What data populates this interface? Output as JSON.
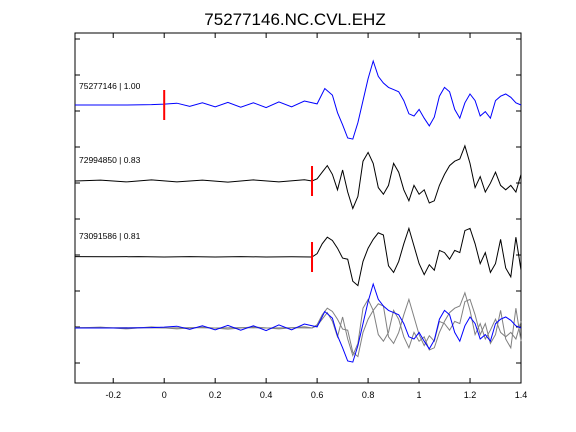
{
  "chart_data": {
    "type": "line",
    "title": "75277146.NC.CVL.EHZ",
    "xlabel": "",
    "ylabel": "",
    "xlim": [
      -0.35,
      1.4
    ],
    "xticks": [
      -0.2,
      0,
      0.2,
      0.4,
      0.6,
      0.8,
      1,
      1.2,
      1.4
    ],
    "xtick_labels": [
      "-0.2",
      "0",
      "0.2",
      "0.4",
      "0.6",
      "0.8",
      "1",
      "1.2",
      "1.4"
    ],
    "grid": false,
    "colors": {
      "master": "#0000ff",
      "other": "#000000",
      "overlay_other": "#808080",
      "pick": "#ff0000"
    },
    "series": [
      {
        "name": "75277146 | 1.00",
        "pick_time": 0.0,
        "x": [
          -0.35,
          -0.15,
          -0.05,
          0.0,
          0.05,
          0.1,
          0.15,
          0.2,
          0.25,
          0.3,
          0.35,
          0.4,
          0.45,
          0.5,
          0.55,
          0.6,
          0.63,
          0.66,
          0.68,
          0.7,
          0.72,
          0.74,
          0.76,
          0.78,
          0.8,
          0.82,
          0.84,
          0.86,
          0.88,
          0.9,
          0.92,
          0.94,
          0.96,
          0.98,
          1.0,
          1.02,
          1.04,
          1.06,
          1.08,
          1.1,
          1.12,
          1.14,
          1.16,
          1.18,
          1.2,
          1.22,
          1.24,
          1.26,
          1.28,
          1.3,
          1.32,
          1.34,
          1.36,
          1.38,
          1.4
        ],
        "y": [
          0,
          0,
          0.02,
          0.04,
          0.08,
          -0.06,
          0.1,
          -0.08,
          0.12,
          -0.1,
          0.1,
          -0.12,
          0.14,
          -0.08,
          0.18,
          0.05,
          0.75,
          0.45,
          -0.35,
          -0.9,
          -1.5,
          -1.55,
          -0.8,
          0.2,
          1.2,
          2.0,
          1.3,
          1.0,
          0.8,
          0.7,
          0.6,
          0.2,
          -0.4,
          -0.5,
          -0.2,
          -0.6,
          -0.95,
          -0.55,
          0.4,
          0.8,
          0.6,
          -0.2,
          -0.6,
          0.1,
          0.5,
          0.2,
          -0.5,
          -0.3,
          -0.6,
          0.2,
          0.4,
          0.5,
          0.35,
          0.1,
          0.0
        ]
      },
      {
        "name": "72994850 | 0.83",
        "pick_time": 0.58,
        "x": [
          -0.35,
          -0.25,
          -0.15,
          -0.05,
          0.05,
          0.15,
          0.25,
          0.35,
          0.45,
          0.55,
          0.58,
          0.6,
          0.62,
          0.64,
          0.66,
          0.68,
          0.7,
          0.72,
          0.74,
          0.76,
          0.78,
          0.8,
          0.82,
          0.84,
          0.86,
          0.88,
          0.9,
          0.92,
          0.94,
          0.96,
          0.98,
          1.0,
          1.02,
          1.04,
          1.06,
          1.08,
          1.1,
          1.12,
          1.14,
          1.16,
          1.18,
          1.2,
          1.22,
          1.24,
          1.26,
          1.28,
          1.3,
          1.32,
          1.34,
          1.36,
          1.38,
          1.4
        ],
        "y": [
          0,
          0.04,
          -0.04,
          0.05,
          -0.04,
          0.04,
          -0.05,
          0.05,
          -0.04,
          0.06,
          0.0,
          0.1,
          0.4,
          0.7,
          0.3,
          -0.4,
          0.5,
          -0.5,
          -1.25,
          -0.7,
          0.9,
          1.3,
          0.8,
          -0.3,
          -0.6,
          -0.2,
          0.8,
          0.4,
          -0.4,
          -0.9,
          -0.2,
          -0.6,
          -0.4,
          -1.0,
          -0.9,
          -0.2,
          0.3,
          0.7,
          0.9,
          1.0,
          1.6,
          0.8,
          -0.3,
          0.2,
          -0.5,
          -0.1,
          0.4,
          -0.2,
          -0.4,
          -0.2,
          -0.5,
          0.3
        ]
      },
      {
        "name": "73091586 | 0.81",
        "pick_time": 0.58,
        "x": [
          -0.35,
          -0.2,
          -0.1,
          0.0,
          0.1,
          0.2,
          0.3,
          0.4,
          0.5,
          0.58,
          0.6,
          0.62,
          0.64,
          0.66,
          0.68,
          0.7,
          0.72,
          0.74,
          0.76,
          0.78,
          0.8,
          0.82,
          0.84,
          0.86,
          0.88,
          0.9,
          0.92,
          0.94,
          0.96,
          0.98,
          1.0,
          1.02,
          1.04,
          1.06,
          1.08,
          1.1,
          1.12,
          1.14,
          1.16,
          1.18,
          1.2,
          1.22,
          1.24,
          1.26,
          1.28,
          1.3,
          1.32,
          1.34,
          1.36,
          1.38,
          1.4
        ],
        "y": [
          0.02,
          0.01,
          0.02,
          0.0,
          0.02,
          0.0,
          0.02,
          0.0,
          0.01,
          0.0,
          0.15,
          0.6,
          0.9,
          0.75,
          0.4,
          -0.05,
          -0.1,
          -1.1,
          -1.3,
          -0.2,
          0.4,
          0.8,
          1.1,
          1.0,
          -0.4,
          -0.7,
          -0.2,
          0.6,
          1.3,
          0.5,
          -0.3,
          -0.8,
          -0.35,
          -0.6,
          0.3,
          0.2,
          -0.1,
          0.3,
          0.2,
          1.2,
          1.3,
          0.6,
          -0.3,
          0.2,
          -0.7,
          -0.3,
          0.8,
          -0.5,
          -0.9,
          0.9,
          -0.6
        ]
      }
    ]
  }
}
